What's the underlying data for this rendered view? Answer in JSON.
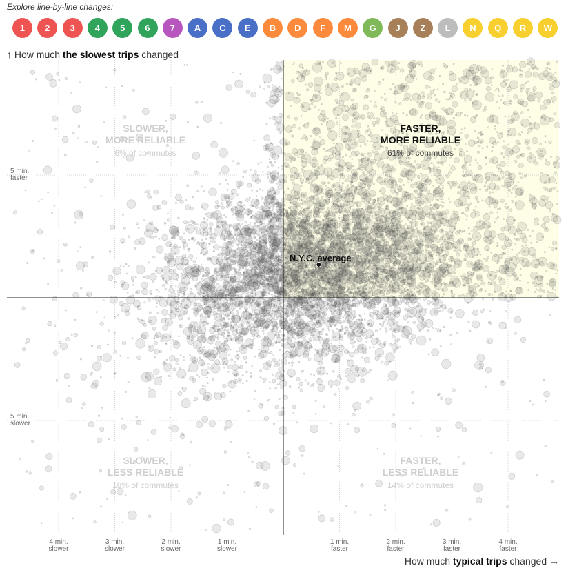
{
  "explore_label": "Explore line-by-line changes:",
  "lines": [
    {
      "label": "1",
      "color": "#ee5452"
    },
    {
      "label": "2",
      "color": "#ee5452"
    },
    {
      "label": "3",
      "color": "#ee5452"
    },
    {
      "label": "4",
      "color": "#2fa45a"
    },
    {
      "label": "5",
      "color": "#2fa45a"
    },
    {
      "label": "6",
      "color": "#2fa45a"
    },
    {
      "label": "7",
      "color": "#b856c0"
    },
    {
      "label": "A",
      "color": "#4a6fc7"
    },
    {
      "label": "C",
      "color": "#4a6fc7"
    },
    {
      "label": "E",
      "color": "#4a6fc7"
    },
    {
      "label": "B",
      "color": "#fb8a3d"
    },
    {
      "label": "D",
      "color": "#fb8a3d"
    },
    {
      "label": "F",
      "color": "#fb8a3d"
    },
    {
      "label": "M",
      "color": "#fb8a3d"
    },
    {
      "label": "G",
      "color": "#80b95a"
    },
    {
      "label": "J",
      "color": "#a77f58"
    },
    {
      "label": "Z",
      "color": "#a77f58"
    },
    {
      "label": "L",
      "color": "#bdbdbd"
    },
    {
      "label": "N",
      "color": "#f7cf2e"
    },
    {
      "label": "Q",
      "color": "#f7cf2e"
    },
    {
      "label": "R",
      "color": "#f7cf2e"
    },
    {
      "label": "W",
      "color": "#f7cf2e"
    }
  ],
  "y_title": {
    "prefix": "↑ How much ",
    "bold": "the slowest trips",
    "suffix": " changed"
  },
  "x_title": {
    "prefix": "How much ",
    "bold": "typical trips",
    "suffix": " changed →"
  },
  "quadrants": {
    "top_left": {
      "title1": "SLOWER,",
      "title2": "MORE RELIABLE",
      "share": "6% of commutes"
    },
    "top_right": {
      "title1": "FASTER,",
      "title2": "MORE RELIABLE",
      "share": "61% of commutes"
    },
    "bottom_left": {
      "title1": "SLOWER,",
      "title2": "LESS RELIABLE",
      "share": "18% of commutes"
    },
    "bottom_right": {
      "title1": "FASTER,",
      "title2": "LESS RELIABLE",
      "share": "14% of commutes"
    }
  },
  "average_label": "N.Y.C. average",
  "chart_data": {
    "type": "scatter",
    "x_axis": {
      "range_min": [
        -5,
        5
      ],
      "ticks": [
        {
          "value": -4,
          "line1": "4 min.",
          "line2": "slower"
        },
        {
          "value": -3,
          "line1": "3 min.",
          "line2": "slower"
        },
        {
          "value": -2,
          "line1": "2 min.",
          "line2": "slower"
        },
        {
          "value": -1,
          "line1": "1 min.",
          "line2": "slower"
        },
        {
          "value": 1,
          "line1": "1 min.",
          "line2": "faster"
        },
        {
          "value": 2,
          "line1": "2 min.",
          "line2": "faster"
        },
        {
          "value": 3,
          "line1": "3 min.",
          "line2": "faster"
        },
        {
          "value": 4,
          "line1": "4 min.",
          "line2": "faster"
        }
      ]
    },
    "y_axis": {
      "range_min": [
        -10,
        10
      ],
      "ticks": [
        {
          "value": 5,
          "line1": "5 min.",
          "line2": "faster"
        },
        {
          "value": -5,
          "line1": "5 min.",
          "line2": "slower"
        }
      ]
    },
    "grid": true,
    "highlight_quadrant": "top-right",
    "highlight_color": "#fefde6",
    "average_point": {
      "x": 0.63,
      "y": 1.35
    },
    "distribution_note_free": true,
    "point_color": "#555555",
    "quadrant_shares": {
      "faster_more_reliable": 61,
      "slower_more_reliable": 6,
      "slower_less_reliable": 18,
      "faster_less_reliable": 14
    }
  }
}
